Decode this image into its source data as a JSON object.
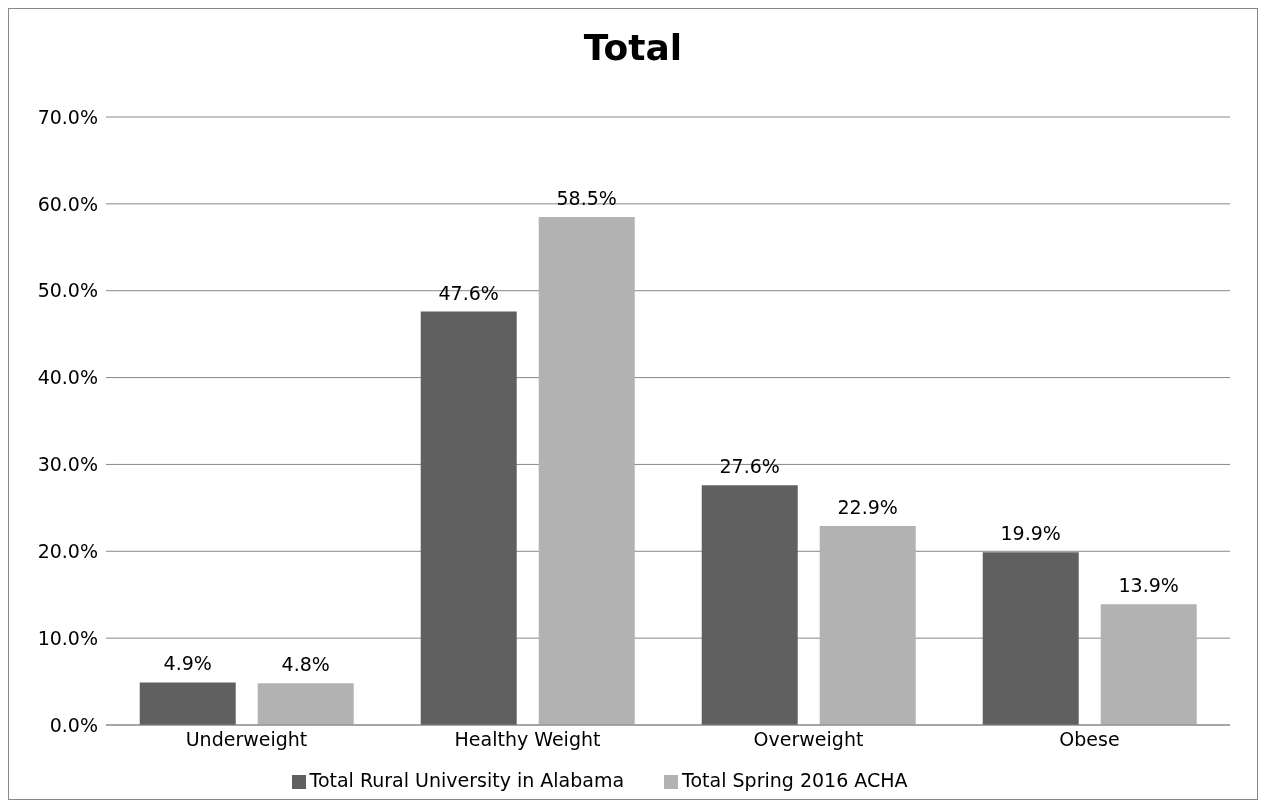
{
  "chart_data": {
    "type": "bar",
    "title": "Total",
    "categories": [
      "Underweight",
      "Healthy Weight",
      "Overweight",
      "Obese"
    ],
    "series": [
      {
        "name": "Total Rural University in Alabama",
        "color": "#606060",
        "values": [
          4.9,
          47.6,
          27.6,
          19.9
        ],
        "value_labels": [
          "4.9%",
          "47.6%",
          "27.6%",
          "19.9%"
        ]
      },
      {
        "name": "Total Spring 2016 ACHA",
        "color": "#b2b2b2",
        "values": [
          4.8,
          58.5,
          22.9,
          13.9
        ],
        "value_labels": [
          "4.8%",
          "58.5%",
          "22.9%",
          "13.9%"
        ]
      }
    ],
    "ylim": [
      0,
      70
    ],
    "yticks": [
      {
        "value": 0,
        "label": "0.0%"
      },
      {
        "value": 10,
        "label": "10.0%"
      },
      {
        "value": 20,
        "label": "20.0%"
      },
      {
        "value": 30,
        "label": "30.0%"
      },
      {
        "value": 40,
        "label": "40.0%"
      },
      {
        "value": 50,
        "label": "50.0%"
      },
      {
        "value": 60,
        "label": "60.0%"
      },
      {
        "value": 70,
        "label": "70.0%"
      }
    ],
    "grid": "y",
    "legend": "bottom"
  }
}
